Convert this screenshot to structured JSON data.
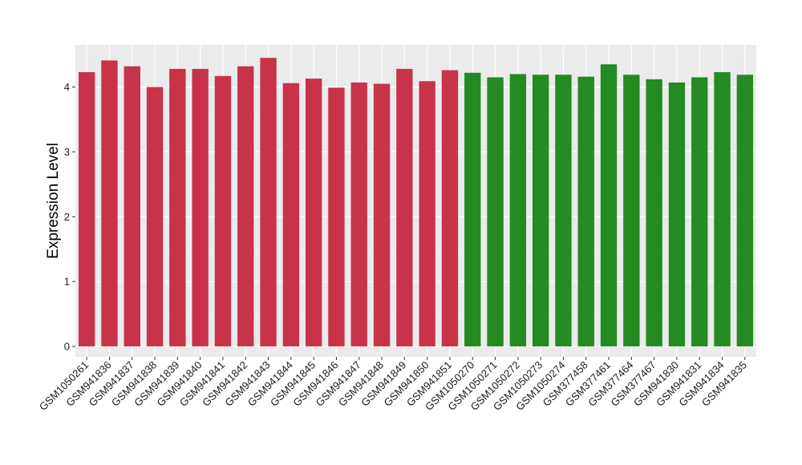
{
  "chart_data": {
    "type": "bar",
    "title": "",
    "xlabel": "",
    "ylabel": "Expression Level",
    "ylim": [
      -0.16,
      4.65
    ],
    "yticks": [
      0,
      1,
      2,
      3,
      4
    ],
    "grid": true,
    "background": "#ebebeb",
    "categories": [
      "GSM1050261",
      "GSM941836",
      "GSM941837",
      "GSM941838",
      "GSM941839",
      "GSM941840",
      "GSM941841",
      "GSM941842",
      "GSM941843",
      "GSM941844",
      "GSM941845",
      "GSM941846",
      "GSM941847",
      "GSM941848",
      "GSM941849",
      "GSM941850",
      "GSM941851",
      "GSM1050270",
      "GSM1050271",
      "GSM1050272",
      "GSM1050273",
      "GSM1050274",
      "GSM377458",
      "GSM377461",
      "GSM377464",
      "GSM377467",
      "GSM941830",
      "GSM941831",
      "GSM941834",
      "GSM941835"
    ],
    "values": [
      4.23,
      4.41,
      4.32,
      4.0,
      4.28,
      4.28,
      4.17,
      4.32,
      4.45,
      4.06,
      4.13,
      3.99,
      4.07,
      4.05,
      4.28,
      4.09,
      4.26,
      4.22,
      4.15,
      4.2,
      4.19,
      4.19,
      4.16,
      4.35,
      4.19,
      4.12,
      4.07,
      4.15,
      4.23,
      4.19
    ],
    "colors": [
      "#c8334a",
      "#c8334a",
      "#c8334a",
      "#c8334a",
      "#c8334a",
      "#c8334a",
      "#c8334a",
      "#c8334a",
      "#c8334a",
      "#c8334a",
      "#c8334a",
      "#c8334a",
      "#c8334a",
      "#c8334a",
      "#c8334a",
      "#c8334a",
      "#c8334a",
      "#238b22",
      "#238b22",
      "#238b22",
      "#238b22",
      "#238b22",
      "#238b22",
      "#238b22",
      "#238b22",
      "#238b22",
      "#238b22",
      "#238b22",
      "#238b22",
      "#238b22"
    ]
  }
}
